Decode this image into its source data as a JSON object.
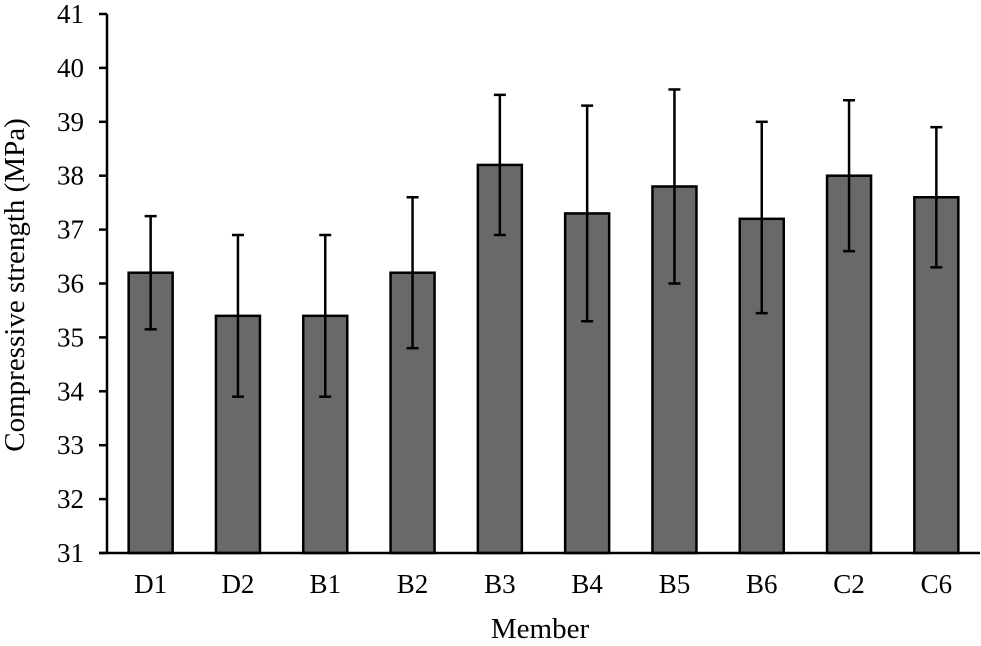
{
  "chart_data": {
    "type": "bar",
    "title": "",
    "xlabel": "Member",
    "ylabel": "Compressive strength (MPa)",
    "ylim": [
      31,
      41
    ],
    "yticks": [
      31,
      32,
      33,
      34,
      35,
      36,
      37,
      38,
      39,
      40,
      41
    ],
    "grid": false,
    "legend": null,
    "categories": [
      "D1",
      "D2",
      "B1",
      "B2",
      "B3",
      "B4",
      "B5",
      "B6",
      "C2",
      "C6"
    ],
    "values": [
      36.2,
      35.4,
      35.4,
      36.2,
      38.2,
      37.3,
      37.8,
      37.2,
      38.0,
      37.6
    ],
    "error_upper": [
      37.25,
      36.9,
      36.9,
      37.6,
      39.5,
      39.3,
      39.6,
      39.0,
      39.4,
      38.9
    ],
    "error_lower": [
      35.15,
      33.9,
      33.9,
      34.8,
      36.9,
      35.3,
      36.0,
      35.45,
      36.6,
      36.3
    ],
    "bar_color": "#696969"
  }
}
